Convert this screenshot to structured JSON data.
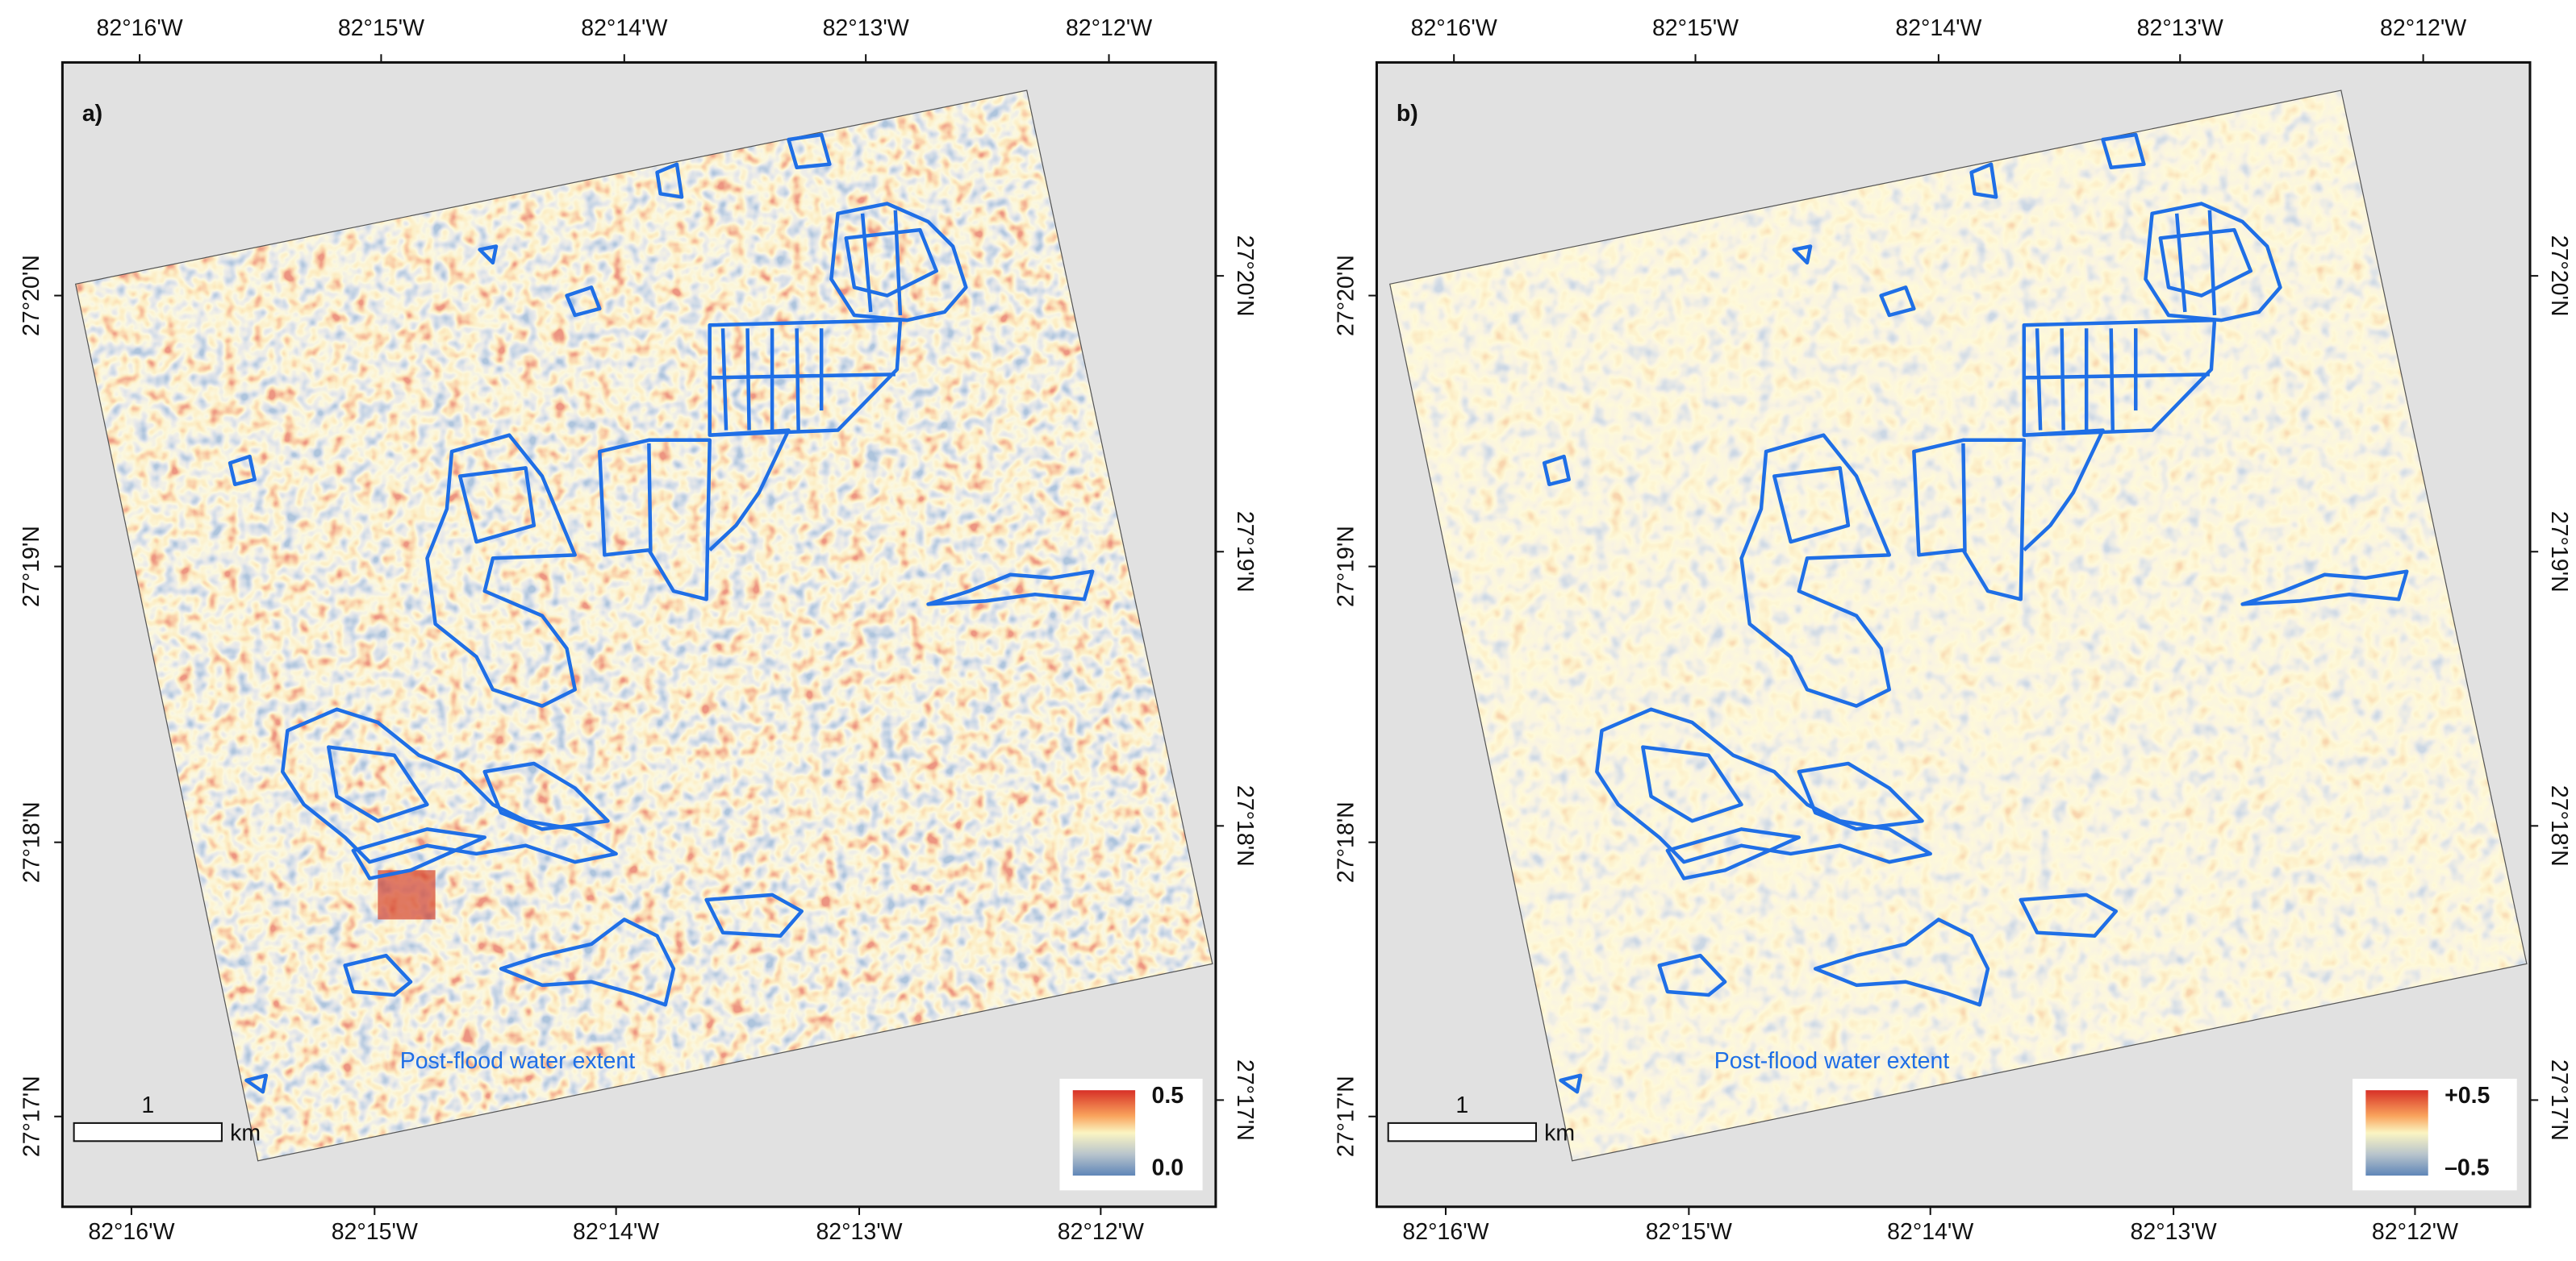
{
  "panels": [
    {
      "label": "a)",
      "top_longitudes": [
        "82°16'W",
        "82°15'W",
        "82°14'W",
        "82°13'W",
        "82°12'W"
      ],
      "bottom_longitudes": [
        "82°16'W",
        "82°15'W",
        "82°14'W",
        "82°13'W",
        "82°12'W"
      ],
      "left_latitudes": [
        "27°20'N",
        "27°19'N",
        "27°18'N",
        "27°17'N"
      ],
      "right_latitudes": [
        "27°20'N",
        "27°19'N",
        "27°18'N",
        "27°17'N"
      ],
      "annotation": "Post-flood water extent",
      "legend": {
        "max": "0.5",
        "min": "0.0"
      },
      "scale_bar": {
        "label": "1",
        "unit": "km"
      }
    },
    {
      "label": "b)",
      "top_longitudes": [
        "82°16'W",
        "82°15'W",
        "82°14'W",
        "82°13'W",
        "82°12'W"
      ],
      "bottom_longitudes": [
        "82°16'W",
        "82°15'W",
        "82°14'W",
        "82°13'W",
        "82°12'W"
      ],
      "left_latitudes": [
        "27°20'N",
        "27°19'N",
        "27°18'N",
        "27°17'N"
      ],
      "right_latitudes": [
        "27°20'N",
        "27°19'N",
        "27°18'N",
        "27°17'N"
      ],
      "annotation": "Post-flood water extent",
      "legend": {
        "max": "+0.5",
        "min": "–0.5"
      },
      "scale_bar": {
        "label": "1",
        "unit": "km"
      }
    }
  ]
}
